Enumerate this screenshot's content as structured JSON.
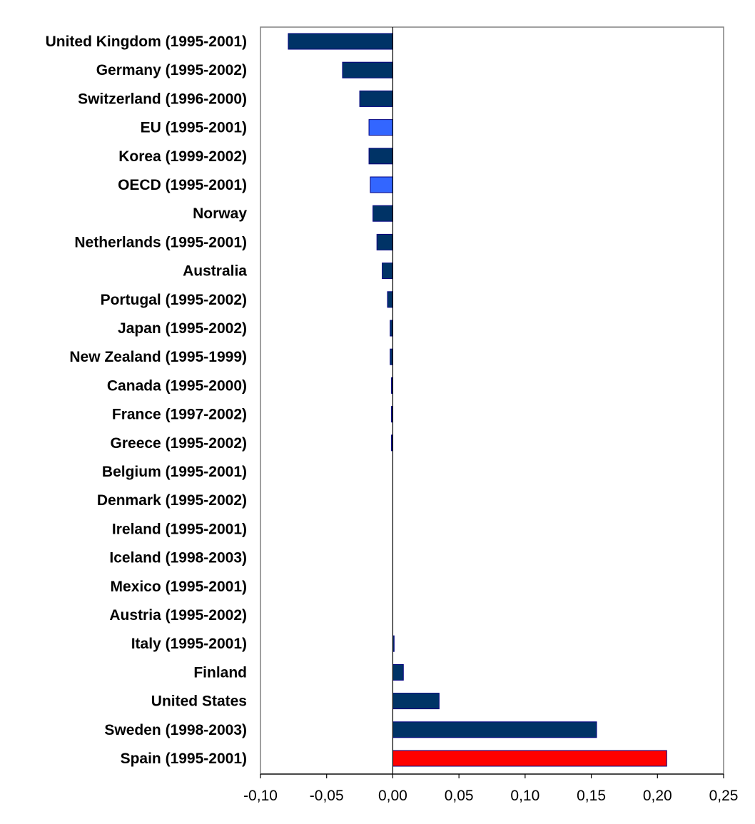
{
  "chart_data": {
    "type": "bar",
    "orientation": "horizontal",
    "title": "",
    "xlabel": "",
    "ylabel": "",
    "xlim": [
      -0.1,
      0.25
    ],
    "x_ticks": [
      -0.1,
      -0.05,
      0.0,
      0.05,
      0.1,
      0.15,
      0.2,
      0.25
    ],
    "x_tick_labels": [
      "-0,10",
      "-0,05",
      "0,00",
      "0,05",
      "0,10",
      "0,15",
      "0,20",
      "0,25"
    ],
    "grid": false,
    "legend": "none",
    "colors": {
      "country": "#003366",
      "aggregate": "#3366FF",
      "highlight": "#FF0000",
      "outline": "#000080"
    },
    "bars": [
      {
        "label": "United Kingdom (1995-2001)",
        "value": -0.079,
        "group": "country"
      },
      {
        "label": "Germany (1995-2002)",
        "value": -0.038,
        "group": "country"
      },
      {
        "label": "Switzerland (1996-2000)",
        "value": -0.025,
        "group": "country"
      },
      {
        "label": "EU (1995-2001)",
        "value": -0.018,
        "group": "aggregate"
      },
      {
        "label": "Korea (1999-2002)",
        "value": -0.018,
        "group": "country"
      },
      {
        "label": "OECD (1995-2001)",
        "value": -0.017,
        "group": "aggregate"
      },
      {
        "label": "Norway",
        "value": -0.015,
        "group": "country"
      },
      {
        "label": "Netherlands (1995-2001)",
        "value": -0.012,
        "group": "country"
      },
      {
        "label": "Australia",
        "value": -0.008,
        "group": "country"
      },
      {
        "label": "Portugal (1995-2002)",
        "value": -0.004,
        "group": "country"
      },
      {
        "label": "Japan (1995-2002)",
        "value": -0.002,
        "group": "country"
      },
      {
        "label": "New Zealand (1995-1999)",
        "value": -0.002,
        "group": "country"
      },
      {
        "label": "Canada (1995-2000)",
        "value": -0.001,
        "group": "country"
      },
      {
        "label": "France (1997-2002)",
        "value": -0.001,
        "group": "country"
      },
      {
        "label": "Greece (1995-2002)",
        "value": -0.001,
        "group": "country"
      },
      {
        "label": "Belgium (1995-2001)",
        "value": 0.0,
        "group": "country"
      },
      {
        "label": "Denmark (1995-2002)",
        "value": 0.0,
        "group": "country"
      },
      {
        "label": "Ireland (1995-2001)",
        "value": 0.0,
        "group": "country"
      },
      {
        "label": "Iceland (1998-2003)",
        "value": 0.0,
        "group": "country"
      },
      {
        "label": "Mexico (1995-2001)",
        "value": 0.0,
        "group": "country"
      },
      {
        "label": "Austria (1995-2002)",
        "value": 0.0,
        "group": "country"
      },
      {
        "label": "Italy (1995-2001)",
        "value": 0.001,
        "group": "country"
      },
      {
        "label": "Finland",
        "value": 0.008,
        "group": "country"
      },
      {
        "label": "United States",
        "value": 0.035,
        "group": "country"
      },
      {
        "label": "Sweden (1998-2003)",
        "value": 0.154,
        "group": "country"
      },
      {
        "label": "Spain (1995-2001)",
        "value": 0.207,
        "group": "highlight"
      }
    ]
  }
}
